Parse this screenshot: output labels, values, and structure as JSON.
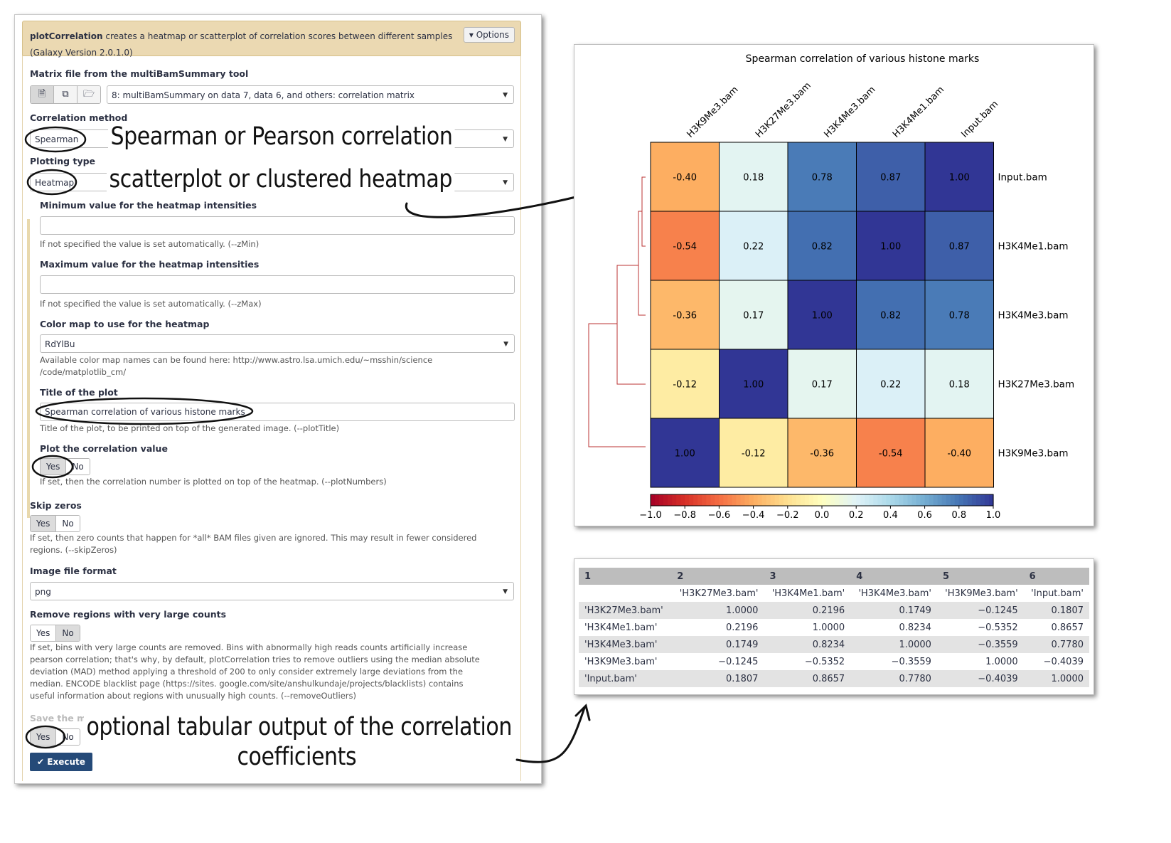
{
  "form": {
    "tool_name": "plotCorrelation",
    "tool_desc": "creates a heatmap or scatterplot of correlation scores between different samples",
    "tool_version": "(Galaxy Version 2.0.1.0)",
    "options_label": "Options",
    "matrix_label": "Matrix file from the multiBamSummary tool",
    "matrix_value": "8: multiBamSummary on data 7, data 6, and others: correlation matrix",
    "corr_method_label": "Correlation method",
    "corr_method_value": "Spearman",
    "plot_type_label": "Plotting type",
    "plot_type_value": "Heatmap",
    "zmin_label": "Minimum value for the heatmap intensities",
    "zmin_value": "",
    "zmin_help": "If not specified the value is set automatically. (--zMin)",
    "zmax_label": "Maximum value for the heatmap intensities",
    "zmax_value": "",
    "zmax_help": "If not specified the value is set automatically. (--zMax)",
    "cmap_label": "Color map to use for the heatmap",
    "cmap_value": "RdYlBu",
    "cmap_help_1": "Available color map names can be found here: http://www.astro.lsa.umich.edu/~msshin/science",
    "cmap_help_2": "/code/matplotlib_cm/",
    "title_label": "Title of the plot",
    "title_value": "Spearman correlation of various histone marks",
    "title_help": "Title of the plot, to be printed on top of the generated image. (--plotTitle)",
    "plotnum_label": "Plot the correlation value",
    "plotnum_help": "If set, then the correlation number is plotted on top of the heatmap. (--plotNumbers)",
    "skipzeros_label": "Skip zeros",
    "skipzeros_help_1": "If set, then zero counts that happen for *all* BAM files given are ignored. This may result in fewer considered",
    "skipzeros_help_2": "regions. (--skipZeros)",
    "imgfmt_label": "Image file format",
    "imgfmt_value": "png",
    "outliers_label": "Remove regions with very large counts",
    "outliers_help_1": "If set, bins with very large counts are removed. Bins with abnormally high reads counts artificially increase",
    "outliers_help_2": "pearson correlation; that's why, by default, plotCorrelation tries to remove outliers using the median absolute",
    "outliers_help_3": "deviation (MAD) method applying a threshold of 200 to only consider extremely large deviations from the",
    "outliers_help_4": "median. ENCODE blacklist page (https://sites. google.com/site/anshulkundaje/projects/blacklists) contains",
    "outliers_help_5": "useful information about regions with unusually high counts. (--removeOutliers)",
    "savematrix_label": "Save the matrix of values underlying the heatmap",
    "yes": "Yes",
    "no": "No",
    "execute_label": "Execute"
  },
  "annotations": {
    "a1": "Spearman or Pearson correlation",
    "a2": "scatterplot or clustered heatmap",
    "a3_line1": "optional tabular output of the correlation",
    "a3_line2": "coefficients"
  },
  "chart_data": {
    "type": "heatmap",
    "title": "Spearman correlation of various histone marks",
    "columns": [
      "H3K9Me3.bam",
      "H3K27Me3.bam",
      "H3K4Me3.bam",
      "H3K4Me1.bam",
      "Input.bam"
    ],
    "rows": [
      "Input.bam",
      "H3K4Me1.bam",
      "H3K4Me3.bam",
      "H3K27Me3.bam",
      "H3K9Me3.bam"
    ],
    "values": [
      [
        -0.4,
        0.18,
        0.78,
        0.87,
        1.0
      ],
      [
        -0.54,
        0.22,
        0.82,
        1.0,
        0.87
      ],
      [
        -0.36,
        0.17,
        1.0,
        0.82,
        0.78
      ],
      [
        -0.12,
        1.0,
        0.17,
        0.22,
        0.18
      ],
      [
        1.0,
        -0.12,
        -0.36,
        -0.54,
        -0.4
      ]
    ],
    "labels": [
      [
        "-0.40",
        "0.18",
        "0.78",
        "0.87",
        "1.00"
      ],
      [
        "-0.54",
        "0.22",
        "0.82",
        "1.00",
        "0.87"
      ],
      [
        "-0.36",
        "0.17",
        "1.00",
        "0.82",
        "0.78"
      ],
      [
        "-0.12",
        "1.00",
        "0.17",
        "0.22",
        "0.18"
      ],
      [
        "1.00",
        "-0.12",
        "-0.36",
        "-0.54",
        "-0.40"
      ]
    ],
    "colorbar_ticks": [
      "−1.0",
      "−0.8",
      "−0.6",
      "−0.4",
      "−0.2",
      "0.0",
      "0.2",
      "0.4",
      "0.6",
      "0.8",
      "1.0"
    ],
    "colormap": "RdYlBu",
    "zlim": [
      -1.0,
      1.0
    ],
    "dendrogram": "left"
  },
  "table": {
    "col_numbers": [
      "1",
      "2",
      "3",
      "4",
      "5",
      "6"
    ],
    "header": [
      "",
      "'H3K27Me3.bam'",
      "'H3K4Me1.bam'",
      "'H3K4Me3.bam'",
      "'H3K9Me3.bam'",
      "'Input.bam'"
    ],
    "rows": [
      [
        "'H3K27Me3.bam'",
        "1.0000",
        "0.2196",
        "0.1749",
        "−0.1245",
        "0.1807"
      ],
      [
        "'H3K4Me1.bam'",
        "0.2196",
        "1.0000",
        "0.8234",
        "−0.5352",
        "0.8657"
      ],
      [
        "'H3K4Me3.bam'",
        "0.1749",
        "0.8234",
        "1.0000",
        "−0.3559",
        "0.7780"
      ],
      [
        "'H3K9Me3.bam'",
        "−0.1245",
        "−0.5352",
        "−0.3559",
        "1.0000",
        "−0.4039"
      ],
      [
        "'Input.bam'",
        "0.1807",
        "0.8657",
        "0.7780",
        "−0.4039",
        "1.0000"
      ]
    ]
  }
}
